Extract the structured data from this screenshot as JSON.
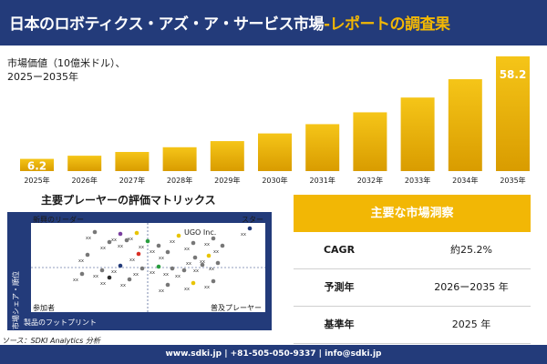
{
  "header": {
    "title_main": "日本のロボティクス・アズ・ア・サービス市場",
    "title_sep": "-",
    "title_accent": "レポートの調査果"
  },
  "subtitle": {
    "line1": "市場価値（10億米ドル）、",
    "line2": "2025ー2035年"
  },
  "chart_data": {
    "type": "bar",
    "categories": [
      "2025年",
      "2026年",
      "2027年",
      "2028年",
      "2029年",
      "2030年",
      "2031年",
      "2032年",
      "2033年",
      "2034年",
      "2035年"
    ],
    "values": [
      6.2,
      7.8,
      9.7,
      12.1,
      15.2,
      19.1,
      23.8,
      29.8,
      37.3,
      46.6,
      58.2
    ],
    "value_labels": [
      "6.2",
      "",
      "",
      "",
      "",
      "",
      "",
      "",
      "",
      "",
      "58.2"
    ],
    "ylim": [
      0,
      60
    ],
    "colors": {
      "bar_top": "#f5c518",
      "bar_bottom": "#d99c00",
      "label": "#ffffff"
    },
    "grid": false
  },
  "matrix": {
    "title": "主要プレーヤーの評価マトリックス",
    "q_top_left": "新興のリーダー",
    "q_top_right": "スター",
    "q_bottom_left": "参加者",
    "q_bottom_right": "普及プレーヤー",
    "y_axis": "市場シェア・順位",
    "x_axis": "製品のフットプリント",
    "highlight_label": "UGO Inc.",
    "point_label": "xx",
    "colors": {
      "frame": "#233b7a"
    }
  },
  "source": "ソース：SDKI Analytics 分析",
  "panel": {
    "heading": "主要な市場洞察",
    "rows": [
      {
        "key": "CAGR",
        "value": "約25.2%"
      },
      {
        "key": "予測年",
        "value": "2026ー2035 年"
      },
      {
        "key": "基準年",
        "value": "2025 年"
      }
    ]
  },
  "footer": {
    "contact": "www.sdki.jp | +81-505-050-9337 | info@sdki.jp"
  }
}
